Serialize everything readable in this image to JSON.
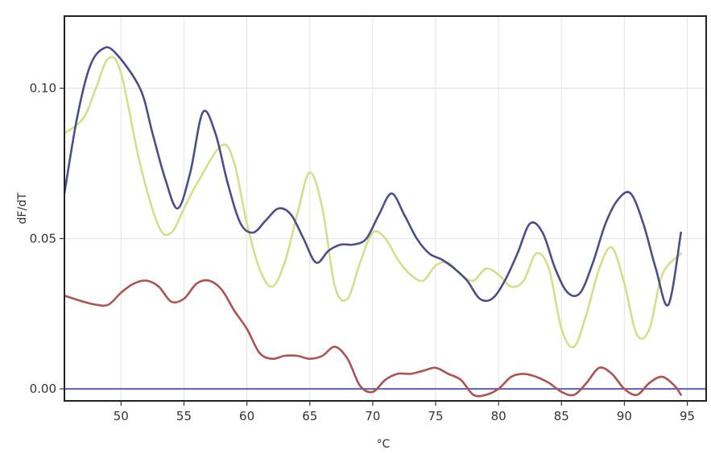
{
  "chart_data": {
    "type": "line",
    "title": "",
    "xlabel": "°C",
    "ylabel": "dF/dT",
    "xlim": [
      45.5,
      96.5
    ],
    "ylim": [
      -0.004,
      0.124
    ],
    "x_ticks": [
      50,
      55,
      60,
      65,
      70,
      75,
      80,
      85,
      90,
      95
    ],
    "x_tick_labels": [
      "50",
      "55",
      "60",
      "65",
      "70",
      "75",
      "80",
      "85",
      "90",
      "95"
    ],
    "y_ticks": [
      0.0,
      0.05,
      0.1
    ],
    "y_tick_labels": [
      "0.00",
      "0.05",
      "0.10"
    ],
    "grid": true,
    "legend": "none",
    "baseline": {
      "value": 0.0,
      "color": "#5a5fae"
    },
    "series": [
      {
        "color": "#d4df8a",
        "x": [
          45.5,
          47,
          48,
          49,
          50,
          51.5,
          53,
          54,
          55,
          56,
          58,
          59,
          60,
          61,
          62,
          63,
          64,
          65,
          66,
          67,
          68,
          69,
          70,
          71,
          72,
          73,
          74,
          75,
          76,
          77,
          78,
          79,
          80,
          81,
          82,
          83,
          84,
          85,
          86,
          87,
          88,
          89,
          90,
          91,
          92,
          93,
          94.5
        ],
        "y": [
          0.085,
          0.09,
          0.1,
          0.11,
          0.105,
          0.075,
          0.054,
          0.052,
          0.06,
          0.068,
          0.081,
          0.075,
          0.055,
          0.04,
          0.034,
          0.042,
          0.058,
          0.072,
          0.06,
          0.034,
          0.03,
          0.042,
          0.052,
          0.05,
          0.043,
          0.038,
          0.036,
          0.041,
          0.042,
          0.038,
          0.036,
          0.04,
          0.038,
          0.034,
          0.036,
          0.045,
          0.04,
          0.02,
          0.014,
          0.025,
          0.04,
          0.047,
          0.035,
          0.018,
          0.02,
          0.038,
          0.045
        ]
      },
      {
        "color": "#4a4f8c",
        "x": [
          45.5,
          46.5,
          47.5,
          48.5,
          49.5,
          51.5,
          52.5,
          53.5,
          54.5,
          55.5,
          56.5,
          57.5,
          58.5,
          59.5,
          60.5,
          61.5,
          62.5,
          63.5,
          64.5,
          65.5,
          66.5,
          67.5,
          68.5,
          69.5,
          70.5,
          71.5,
          72.5,
          73.5,
          74.5,
          75.5,
          76.5,
          77.5,
          78.5,
          79.5,
          80.5,
          81.5,
          82.5,
          83.5,
          84.5,
          85.5,
          86.5,
          87.5,
          88.5,
          89.5,
          90.5,
          91.5,
          92.5,
          93.5,
          94.5
        ],
        "y": [
          0.065,
          0.09,
          0.107,
          0.113,
          0.112,
          0.1,
          0.085,
          0.07,
          0.06,
          0.072,
          0.092,
          0.085,
          0.068,
          0.055,
          0.052,
          0.056,
          0.06,
          0.058,
          0.05,
          0.042,
          0.046,
          0.048,
          0.048,
          0.05,
          0.058,
          0.065,
          0.058,
          0.05,
          0.045,
          0.043,
          0.04,
          0.036,
          0.03,
          0.03,
          0.036,
          0.045,
          0.055,
          0.052,
          0.04,
          0.032,
          0.032,
          0.042,
          0.055,
          0.063,
          0.065,
          0.055,
          0.04,
          0.028,
          0.052
        ]
      },
      {
        "color": "#b0524f",
        "x": [
          45.5,
          47,
          48,
          49,
          50,
          51,
          52,
          53,
          54,
          55,
          56,
          57,
          58,
          59,
          60,
          61,
          62,
          63,
          64,
          65,
          66,
          67,
          68,
          69,
          70,
          71,
          72,
          73,
          74,
          75,
          76,
          77,
          78,
          79,
          80,
          81,
          82,
          83,
          84,
          85,
          86,
          87,
          88,
          89,
          90,
          91,
          92,
          93,
          94,
          94.5
        ],
        "y": [
          0.031,
          0.029,
          0.028,
          0.028,
          0.032,
          0.035,
          0.036,
          0.034,
          0.029,
          0.03,
          0.035,
          0.036,
          0.033,
          0.026,
          0.02,
          0.012,
          0.01,
          0.011,
          0.011,
          0.01,
          0.011,
          0.014,
          0.01,
          0.001,
          -0.001,
          0.003,
          0.005,
          0.005,
          0.006,
          0.007,
          0.005,
          0.003,
          -0.002,
          -0.002,
          0.0,
          0.004,
          0.005,
          0.004,
          0.002,
          -0.001,
          -0.002,
          0.002,
          0.007,
          0.005,
          0.0,
          -0.002,
          0.002,
          0.004,
          0.001,
          -0.002
        ]
      }
    ]
  }
}
